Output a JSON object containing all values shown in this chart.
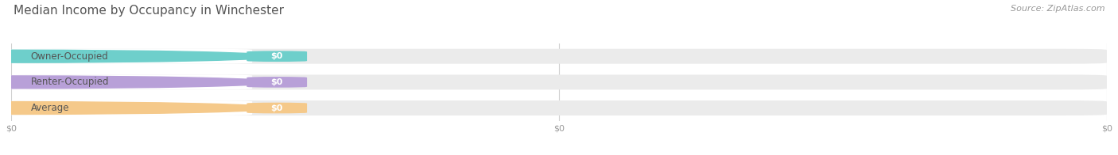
{
  "title": "Median Income by Occupancy in Winchester",
  "source_text": "Source: ZipAtlas.com",
  "categories": [
    "Owner-Occupied",
    "Renter-Occupied",
    "Average"
  ],
  "values": [
    0,
    0,
    0
  ],
  "bar_colors": [
    "#6ecfcb",
    "#b8a0d8",
    "#f5c98a"
  ],
  "bar_bg_color": "#f0f0f0",
  "x_tick_labels": [
    "$0",
    "$0",
    "$0"
  ],
  "x_tick_positions": [
    0.0,
    0.5,
    1.0
  ],
  "xlim": [
    0,
    1.0
  ],
  "bg_color": "#ffffff",
  "title_color": "#555555",
  "title_fontsize": 11,
  "source_fontsize": 8,
  "bar_height": 0.58,
  "fig_width": 14.06,
  "fig_height": 1.96
}
